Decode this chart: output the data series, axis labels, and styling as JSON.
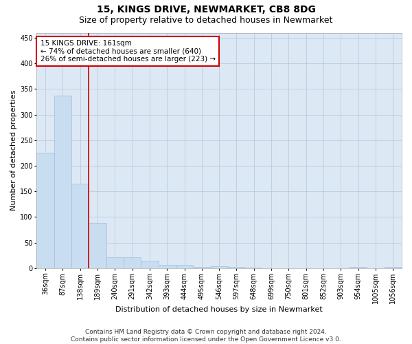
{
  "title": "15, KINGS DRIVE, NEWMARKET, CB8 8DG",
  "subtitle": "Size of property relative to detached houses in Newmarket",
  "xlabel": "Distribution of detached houses by size in Newmarket",
  "ylabel": "Number of detached properties",
  "bar_color": "#c8ddf0",
  "bar_edge_color": "#a0bedd",
  "background_color": "#ffffff",
  "plot_bg_color": "#dde8f5",
  "grid_color": "#b8cce0",
  "annotation_line_color": "#cc0000",
  "annotation_box_color": "#cc0000",
  "property_line_x": 2.5,
  "categories": [
    "36sqm",
    "87sqm",
    "138sqm",
    "189sqm",
    "240sqm",
    "291sqm",
    "342sqm",
    "393sqm",
    "444sqm",
    "495sqm",
    "546sqm",
    "597sqm",
    "648sqm",
    "699sqm",
    "750sqm",
    "801sqm",
    "852sqm",
    "903sqm",
    "954sqm",
    "1005sqm",
    "1056sqm"
  ],
  "values": [
    225,
    337,
    165,
    89,
    22,
    21,
    15,
    7,
    6,
    3,
    4,
    3,
    1,
    0,
    0,
    0,
    0,
    0,
    2,
    0,
    2
  ],
  "ylim": [
    0,
    460
  ],
  "yticks": [
    0,
    50,
    100,
    150,
    200,
    250,
    300,
    350,
    400,
    450
  ],
  "annotation_title": "15 KINGS DRIVE: 161sqm",
  "annotation_line1": "← 74% of detached houses are smaller (640)",
  "annotation_line2": "26% of semi-detached houses are larger (223) →",
  "footer_line1": "Contains HM Land Registry data © Crown copyright and database right 2024.",
  "footer_line2": "Contains public sector information licensed under the Open Government Licence v3.0.",
  "title_fontsize": 10,
  "subtitle_fontsize": 9,
  "axis_label_fontsize": 8,
  "tick_fontsize": 7,
  "annotation_fontsize": 7.5,
  "footer_fontsize": 6.5
}
